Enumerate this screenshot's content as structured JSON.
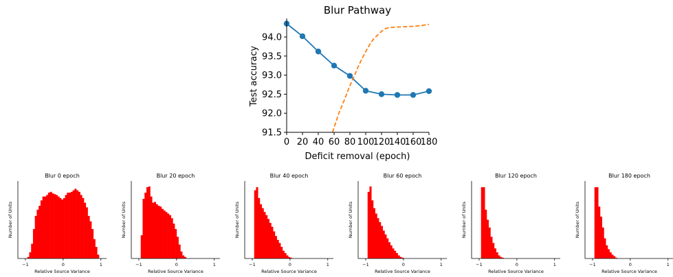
{
  "main_chart": {
    "type": "line",
    "title": "Blur Pathway",
    "xlabel": "Deficit removal (epoch)",
    "ylabel": "Test accuracy",
    "xlim": [
      0,
      180
    ],
    "ylim": [
      91.5,
      94.5
    ],
    "xticks": [
      0,
      20,
      40,
      60,
      80,
      100,
      120,
      140,
      160,
      180
    ],
    "yticks": [
      91.5,
      92.0,
      92.5,
      93.0,
      93.5,
      94.0
    ],
    "ytick_labels": [
      "91.5",
      "92.0",
      "92.5",
      "93.0",
      "93.5",
      "94.0"
    ],
    "series": [
      {
        "style": "solid-markers",
        "color": "#1f77b4",
        "x": [
          0,
          20,
          40,
          60,
          80,
          100,
          120,
          140,
          160,
          180
        ],
        "y": [
          94.35,
          94.02,
          93.62,
          93.25,
          92.98,
          92.59,
          92.5,
          92.48,
          92.48,
          92.58
        ]
      },
      {
        "style": "dashed",
        "color": "#ff7f0e",
        "x": [
          58,
          62,
          66,
          70,
          74,
          78,
          82,
          86,
          90,
          95,
          100,
          105,
          110,
          115,
          120,
          125,
          130,
          140,
          150,
          160,
          170,
          180
        ],
        "y": [
          91.5,
          91.75,
          92.0,
          92.2,
          92.4,
          92.62,
          92.82,
          93.0,
          93.2,
          93.42,
          93.62,
          93.8,
          93.95,
          94.05,
          94.15,
          94.22,
          94.25,
          94.26,
          94.27,
          94.28,
          94.3,
          94.33
        ]
      }
    ]
  },
  "histograms": {
    "xlabel": "Relative Source Variance",
    "ylabel": "Number of Units",
    "xticks": [
      -1,
      0,
      1
    ],
    "xtick_labels": [
      "−1",
      "0",
      "1"
    ],
    "bin_start": -0.95,
    "bin_width": 0.05,
    "bar_color": "#ff0000",
    "panels": [
      {
        "title": "Blur 0 epoch",
        "heights": [
          2,
          8,
          19,
          38,
          55,
          63,
          68,
          75,
          80,
          80,
          82,
          85,
          86,
          84,
          83,
          82,
          80,
          78,
          76,
          78,
          82,
          85,
          85,
          86,
          88,
          90,
          88,
          86,
          82,
          78,
          72,
          66,
          55,
          48,
          38,
          25,
          15,
          5
        ]
      },
      {
        "title": "Blur 20 epoch",
        "heights": [
          30,
          77,
          85,
          92,
          93,
          80,
          72,
          73,
          70,
          68,
          67,
          64,
          62,
          60,
          58,
          56,
          52,
          45,
          38,
          28,
          18,
          9,
          4,
          2
        ]
      },
      {
        "title": "Blur 40 epoch",
        "heights": [
          88,
          92,
          78,
          70,
          65,
          60,
          56,
          51,
          46,
          41,
          35,
          29,
          24,
          20,
          15,
          10,
          7,
          4,
          2,
          1
        ]
      },
      {
        "title": "Blur 60 epoch",
        "heights": [
          86,
          93,
          75,
          65,
          58,
          52,
          47,
          42,
          36,
          31,
          26,
          21,
          17,
          13,
          10,
          7,
          4,
          2,
          1
        ]
      },
      {
        "title": "Blur 120 epoch",
        "heights": [
          92,
          92,
          63,
          50,
          40,
          28,
          20,
          13,
          8,
          4,
          2,
          1
        ]
      },
      {
        "title": "Blur 180 epoch",
        "heights": [
          92,
          92,
          67,
          54,
          40,
          26,
          17,
          12,
          8,
          5,
          3,
          1
        ]
      }
    ]
  }
}
